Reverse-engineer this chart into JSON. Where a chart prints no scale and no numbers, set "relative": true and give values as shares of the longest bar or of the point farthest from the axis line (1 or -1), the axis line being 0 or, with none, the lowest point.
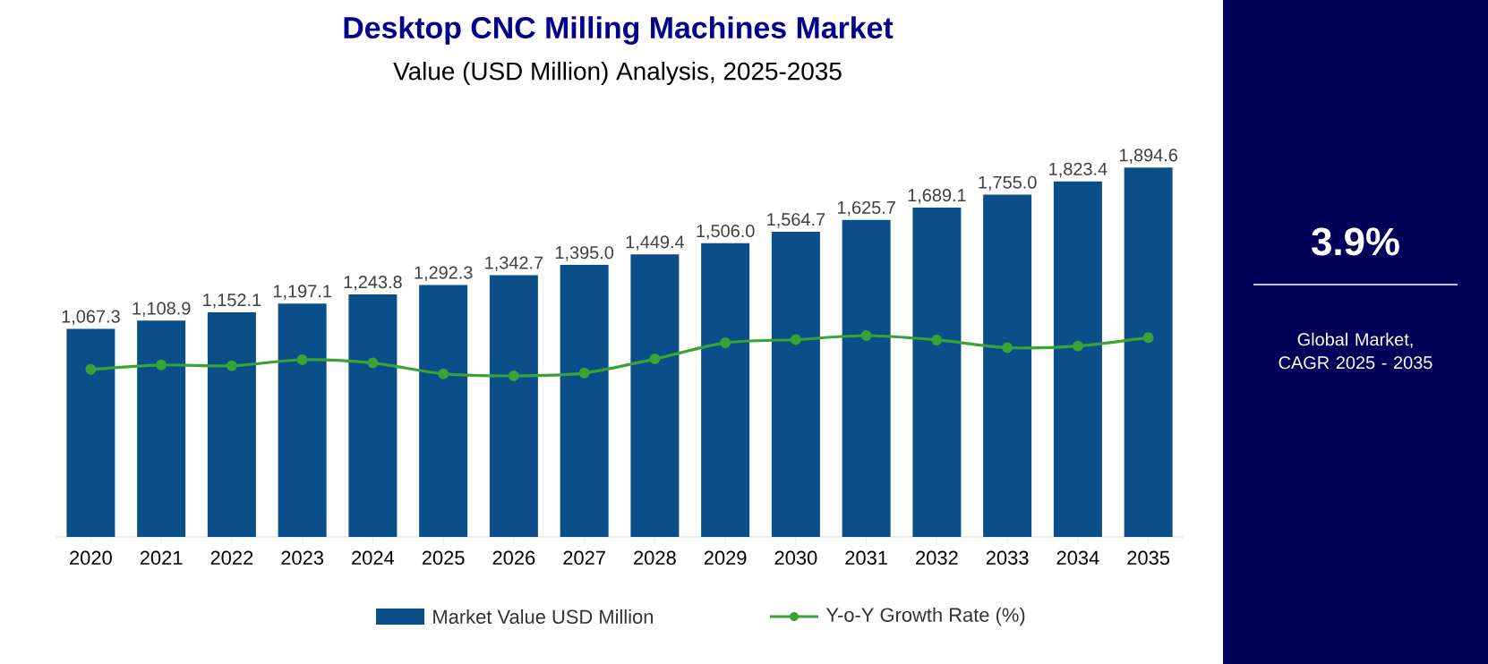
{
  "chart_data": [
    {
      "type": "bar",
      "title": "Desktop CNC Milling Machines Market",
      "subtitle": "Value (USD Million) Analysis, 2025-2035",
      "categories": [
        "2020",
        "2021",
        "2022",
        "2023",
        "2024",
        "2025",
        "2026",
        "2027",
        "2028",
        "2029",
        "2030",
        "2031",
        "2032",
        "2033",
        "2034",
        "2035"
      ],
      "series": [
        {
          "name": "Market Value USD Million",
          "color": "#0b4f8a",
          "values": [
            1067.3,
            1108.9,
            1152.1,
            1197.1,
            1243.8,
            1292.3,
            1342.7,
            1395.0,
            1449.4,
            1506.0,
            1564.7,
            1625.7,
            1689.1,
            1755.0,
            1823.4,
            1894.6
          ],
          "value_labels": [
            "1,067.3",
            "1,108.9",
            "1,152.1",
            "1,197.1",
            "1,243.8",
            "1,292.3",
            "1,342.7",
            "1,395.0",
            "1,449.4",
            "1,506.0",
            "1,564.7",
            "1,625.7",
            "1,689.1",
            "1,755.0",
            "1,823.4",
            "1,894.6"
          ]
        }
      ],
      "legend": "bottom",
      "tick_labels": "x"
    },
    {
      "type": "line",
      "relative": true,
      "categories": [
        "2020",
        "2021",
        "2022",
        "2023",
        "2024",
        "2025",
        "2026",
        "2027",
        "2028",
        "2029",
        "2030",
        "2031",
        "2032",
        "2033",
        "2034",
        "2035"
      ],
      "series": [
        {
          "name": "Y-o-Y Growth Rate (%)",
          "color": "#3aa335",
          "values": [
            0.16,
            0.27,
            0.25,
            0.4,
            0.32,
            0.05,
            0,
            0.07,
            0.42,
            0.82,
            0.9,
            1,
            0.89,
            0.7,
            0.74,
            0.95
          ]
        }
      ],
      "marker": "circle",
      "line_style": "solid",
      "legend": "bottom",
      "tick_labels": false
    },
    {
      "type": "other",
      "annotations": [
        "3.9%",
        "Global Market, CAGR 2025 - 2035"
      ]
    }
  ]
}
